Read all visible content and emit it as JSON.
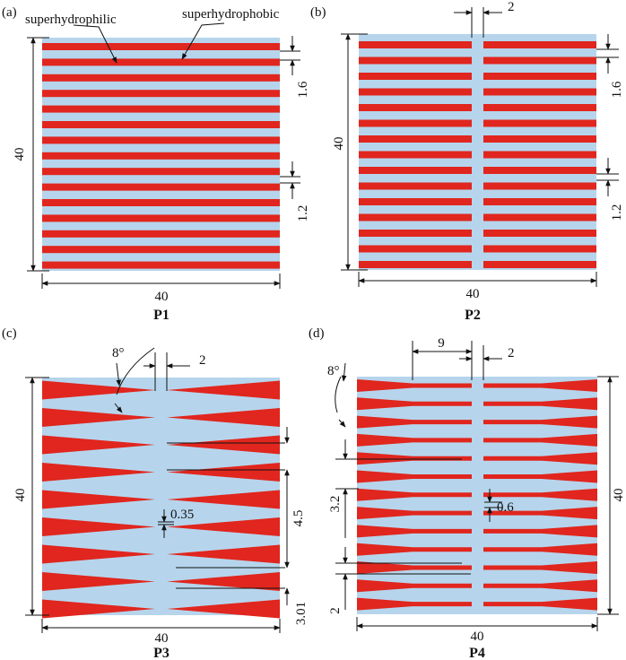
{
  "colors": {
    "substrate": "#b6d5ec",
    "stripe": "#e0261e",
    "line": "#111111"
  },
  "panels": [
    {
      "id": "a",
      "letter": "(a)",
      "name": "P1",
      "width": "40",
      "height": "40",
      "dims": [
        "1.6",
        "1.2"
      ],
      "callouts": [
        "superhydrophilic",
        "superhydrophobic"
      ]
    },
    {
      "id": "b",
      "letter": "(b)",
      "name": "P2",
      "width": "40",
      "height": "40",
      "dims": [
        "2",
        "1.6",
        "1.2"
      ]
    },
    {
      "id": "c",
      "letter": "(c)",
      "name": "P3",
      "width": "40",
      "height": "40",
      "angle": "8°",
      "dims": [
        "2",
        "0.35",
        "4.5",
        "3.01"
      ]
    },
    {
      "id": "d",
      "letter": "(d)",
      "name": "P4",
      "width": "40",
      "height": "40",
      "angle": "8°",
      "dims": [
        "9",
        "2",
        "3.2",
        "0.6",
        "2"
      ]
    }
  ]
}
